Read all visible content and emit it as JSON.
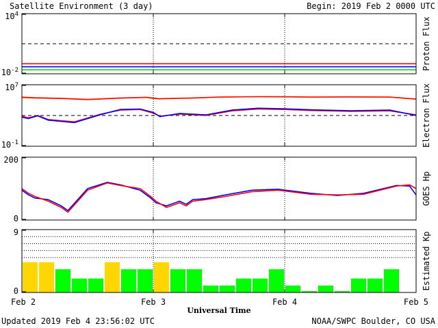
{
  "header": {
    "title": "Satellite Environment (3 day)",
    "begin": "Begin:  2019 Feb 2 0000 UTC"
  },
  "footer": {
    "updated": "Updated 2019 Feb  4 23:56:02 UTC",
    "credit": "NOAA/SWPC Boulder, CO USA"
  },
  "chart_data": [
    {
      "type": "line",
      "ylabel": "Proton Flux",
      "yscale": "log",
      "ylim": [
        0.01,
        10000
      ],
      "ytick_labels": [
        "10^4",
        "10^-2"
      ],
      "x_range_days": [
        0,
        3
      ],
      "threshold": 10,
      "series": [
        {
          "color": "#ff0000",
          "x": [
            0,
            0.5,
            1,
            1.5,
            2,
            2.5,
            3
          ],
          "values": [
            0.1,
            0.1,
            0.1,
            0.1,
            0.1,
            0.1,
            0.1
          ]
        },
        {
          "color": "#0000ff",
          "x": [
            0,
            0.5,
            1,
            1.5,
            2,
            2.5,
            3
          ],
          "values": [
            0.05,
            0.05,
            0.05,
            0.05,
            0.05,
            0.05,
            0.05
          ]
        },
        {
          "color": "#00dd00",
          "x": [
            0,
            0.5,
            1,
            1.5,
            2,
            2.5,
            3
          ],
          "values": [
            0.025,
            0.025,
            0.025,
            0.025,
            0.025,
            0.025,
            0.025
          ]
        }
      ]
    },
    {
      "type": "line",
      "ylabel": "Electron Flux",
      "yscale": "log",
      "ylim": [
        0.1,
        10000000
      ],
      "ytick_labels": [
        "10^7",
        "10^-1"
      ],
      "x_range_days": [
        0,
        3
      ],
      "threshold": 1000,
      "series": [
        {
          "color": "#ffa500",
          "x": [
            0,
            0.1,
            0.3,
            0.5,
            0.75,
            0.95,
            1.0,
            1.05,
            1.15,
            1.3,
            1.5,
            1.8,
            2.0,
            2.2,
            2.5,
            2.8,
            3.0
          ],
          "values": [
            200000,
            180000,
            160000,
            110000,
            180000,
            220000,
            160000,
            140000,
            160000,
            180000,
            240000,
            280000,
            260000,
            240000,
            260000,
            240000,
            130000
          ]
        },
        {
          "color": "#ff0000",
          "x": [
            0,
            0.1,
            0.3,
            0.5,
            0.75,
            0.95,
            1.0,
            1.05,
            1.15,
            1.3,
            1.5,
            1.8,
            2.0,
            2.2,
            2.5,
            2.8,
            3.0
          ],
          "values": [
            240000,
            200000,
            170000,
            120000,
            190000,
            230000,
            180000,
            150000,
            170000,
            190000,
            250000,
            280000,
            270000,
            250000,
            260000,
            250000,
            140000
          ]
        },
        {
          "color": "#ff0000",
          "x": [
            0,
            0.05,
            0.12,
            0.2,
            0.4,
            0.6,
            0.75,
            0.9,
            1.0,
            1.05,
            1.2,
            1.4,
            1.6,
            1.8,
            2.0,
            2.2,
            2.5,
            2.8,
            3.0
          ],
          "values": [
            800,
            500,
            1000,
            300,
            150,
            1500,
            5000,
            6000,
            2000,
            800,
            1500,
            1000,
            4000,
            7000,
            6000,
            4500,
            3500,
            4000,
            1200
          ]
        },
        {
          "color": "#0000ff",
          "x": [
            0,
            0.05,
            0.12,
            0.2,
            0.4,
            0.6,
            0.75,
            0.9,
            1.0,
            1.05,
            1.2,
            1.4,
            1.6,
            1.8,
            2.0,
            2.2,
            2.5,
            2.8,
            3.0
          ],
          "values": [
            600,
            400,
            900,
            250,
            120,
            1300,
            6000,
            7000,
            2500,
            700,
            1800,
            1200,
            5000,
            9000,
            7500,
            5500,
            4200,
            5000,
            1000
          ]
        }
      ]
    },
    {
      "type": "line",
      "ylabel": "GOES Hp",
      "ylim": [
        0,
        200
      ],
      "ytick_labels": [
        "200",
        "0"
      ],
      "x_range_days": [
        0,
        3
      ],
      "series": [
        {
          "color": "#0000ff",
          "x": [
            0,
            0.05,
            0.1,
            0.2,
            0.3,
            0.35,
            0.5,
            0.65,
            0.75,
            0.9,
            0.98,
            1.02,
            1.1,
            1.2,
            1.25,
            1.3,
            1.4,
            1.55,
            1.75,
            1.95,
            2.2,
            2.4,
            2.6,
            2.85,
            2.95,
            3.0
          ],
          "values": [
            95,
            80,
            70,
            65,
            45,
            30,
            100,
            120,
            112,
            95,
            70,
            55,
            45,
            60,
            50,
            65,
            68,
            80,
            95,
            98,
            85,
            78,
            85,
            110,
            108,
            80
          ]
        },
        {
          "color": "#ff0000",
          "x": [
            0,
            0.05,
            0.1,
            0.2,
            0.3,
            0.35,
            0.5,
            0.65,
            0.75,
            0.9,
            0.98,
            1.02,
            1.1,
            1.2,
            1.25,
            1.3,
            1.4,
            1.55,
            1.75,
            1.95,
            2.2,
            2.4,
            2.6,
            2.85,
            2.95,
            3.0
          ],
          "values": [
            100,
            85,
            75,
            60,
            40,
            25,
            95,
            118,
            110,
            100,
            75,
            60,
            40,
            55,
            45,
            60,
            65,
            75,
            90,
            95,
            82,
            80,
            82,
            108,
            112,
            100
          ]
        }
      ]
    },
    {
      "type": "bar",
      "ylabel": "Estimated Kp",
      "ylim": [
        0,
        9
      ],
      "ytick_labels": [
        "9",
        "0"
      ],
      "x_range_days": [
        0,
        3
      ],
      "bar_width_hours": 3,
      "values": [
        4.33,
        4.33,
        3.33,
        2,
        2,
        4.33,
        3.33,
        3.33,
        4.33,
        3.33,
        3.33,
        1,
        1,
        2,
        2,
        3.33,
        1,
        0.2,
        1,
        0.2,
        2,
        2,
        3.33
      ],
      "colors": {
        "quiet": "#00ff00",
        "active": "#ffd700"
      },
      "active_threshold": 4
    }
  ],
  "x_axis": {
    "ticks": [
      "Feb 2",
      "Feb 3",
      "Feb 4",
      "Feb 5"
    ],
    "label": "Universal Time"
  }
}
